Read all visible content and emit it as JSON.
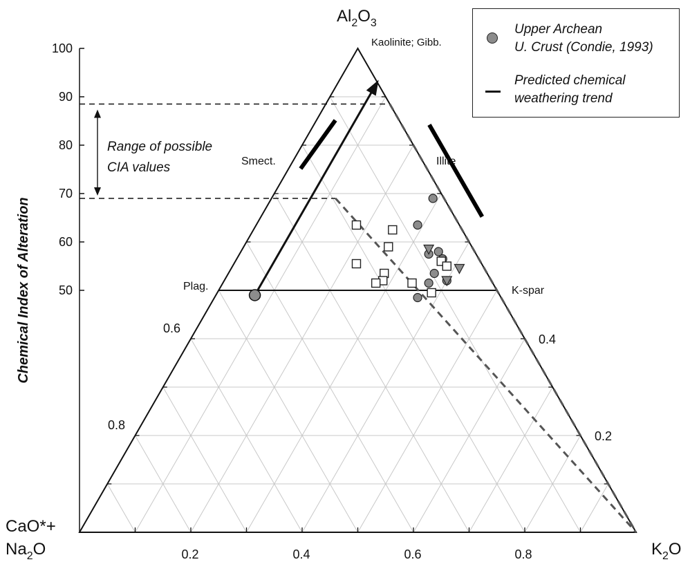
{
  "chart_data": {
    "type": "scatter",
    "subtype": "ternary",
    "apex_labels": {
      "top": {
        "main": "Al",
        "sub1": "2",
        "main2": "O",
        "sub2": "3"
      },
      "bottom_left": {
        "line1": "CaO*+",
        "line2_main": "Na",
        "line2_sub": "2",
        "line2_main2": "O"
      },
      "bottom_right": {
        "main": "K",
        "sub": "2",
        "main2": "O"
      }
    },
    "ylabel": "Chemical Index of Alteration",
    "yaxis": {
      "ticks": [
        100,
        90,
        80,
        70,
        60,
        50
      ]
    },
    "ylim": [
      0,
      100
    ],
    "bottom_axis_ticks": [
      "0.2",
      "0.4",
      "0.6",
      "0.8"
    ],
    "left_edge_ticks": [
      "0.6",
      "0.8"
    ],
    "right_edge_ticks": [
      "0.4",
      "0.2"
    ],
    "mineral_labels": {
      "kaolinite": "Kaolinite; Gibb.",
      "illite": "Illite",
      "smectite": "Smect.",
      "plagioclase": "Plag.",
      "kspar": "K-spar"
    },
    "annotation": {
      "line1": "Range of possible",
      "line2": "CIA values"
    },
    "cia_range": [
      69,
      88.5
    ],
    "legend": {
      "circle_line1": "Upper Archean",
      "circle_line2": "U. Crust (Condie, 1993)",
      "line_line1": "Predicted chemical",
      "line_line2": "weathering trend"
    },
    "upper_archean_crust": {
      "al": 0.49,
      "k": 0.07
    },
    "predicted_trend": {
      "from": {
        "al": 0.49,
        "k": 0.07
      },
      "to": {
        "al": 0.885,
        "k": 0.07
      }
    },
    "mixing_lines": [
      {
        "from": {
          "al": 0.885,
          "k": 0.115
        },
        "to": {
          "al": 0.0,
          "k": 1.0
        }
      },
      {
        "from": {
          "al": 0.69,
          "k": 0.115
        },
        "to": {
          "al": 0.0,
          "k": 1.0
        }
      }
    ],
    "series": [
      {
        "marker": "circle",
        "points": [
          {
            "cia": 69,
            "k": 0.29
          },
          {
            "cia": 63.5,
            "k": 0.29
          },
          {
            "cia": 57.5,
            "k": 0.34
          },
          {
            "cia": 58.0,
            "k": 0.355
          },
          {
            "cia": 56.5,
            "k": 0.37
          },
          {
            "cia": 53.5,
            "k": 0.37
          },
          {
            "cia": 51.5,
            "k": 0.37
          },
          {
            "cia": 52.0,
            "k": 0.4
          },
          {
            "cia": 48.5,
            "k": 0.365
          }
        ]
      },
      {
        "marker": "square",
        "points": [
          {
            "cia": 63.5,
            "k": 0.18
          },
          {
            "cia": 62.5,
            "k": 0.25
          },
          {
            "cia": 59.0,
            "k": 0.26
          },
          {
            "cia": 55.5,
            "k": 0.22
          },
          {
            "cia": 53.5,
            "k": 0.28
          },
          {
            "cia": 52.0,
            "k": 0.285
          },
          {
            "cia": 51.5,
            "k": 0.275
          },
          {
            "cia": 56.0,
            "k": 0.37
          },
          {
            "cia": 55.0,
            "k": 0.385
          },
          {
            "cia": 51.5,
            "k": 0.34
          },
          {
            "cia": 49.5,
            "k": 0.385
          }
        ]
      },
      {
        "marker": "triangle-down",
        "points": [
          {
            "cia": 58.5,
            "k": 0.335
          },
          {
            "cia": 54.5,
            "k": 0.41
          },
          {
            "cia": 52.0,
            "k": 0.4
          }
        ]
      }
    ],
    "colors": {
      "marker_fill": "#8c8c8c",
      "dashed": "#555555",
      "grid": "#c8c8c8",
      "mineral_bar": "#000000"
    }
  }
}
